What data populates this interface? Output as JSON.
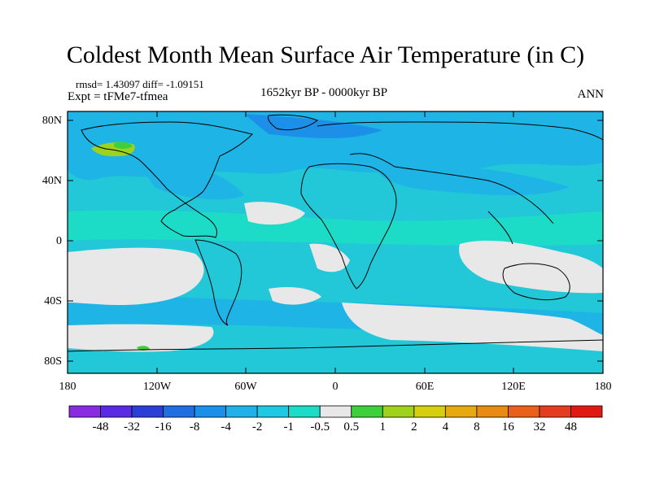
{
  "header": {
    "title": "Coldest Month Mean Surface Air Temperature (in C)",
    "stats": "rmsd= 1.43097 diff= -1.09151",
    "experiment": "Expt = tFMe7-tfmea",
    "period": "1652kyr BP - 0000kyr BP",
    "season": "ANN"
  },
  "axes": {
    "y_ticks": [
      "80N",
      "40N",
      "0",
      "40S",
      "80S"
    ],
    "x_ticks": [
      "180",
      "120W",
      "60W",
      "0",
      "60E",
      "120E",
      "180"
    ]
  },
  "colorbar": {
    "labels": [
      "-48",
      "-32",
      "-16",
      "-8",
      "-4",
      "-2",
      "-1",
      "-0.5",
      "0.5",
      "1",
      "2",
      "4",
      "8",
      "16",
      "32",
      "48"
    ],
    "colors": [
      "#8a2be2",
      "#5a2be2",
      "#2b3fd6",
      "#1f6fe0",
      "#1c90e8",
      "#22b0ea",
      "#1fc8e4",
      "#1ddcc7",
      "#e8e8e8",
      "#3fcf3a",
      "#9fd21c",
      "#d6cf10",
      "#e8a810",
      "#e88a14",
      "#e8601a",
      "#e43c1e",
      "#e01a12"
    ]
  },
  "colors": {
    "background": "#e8e8e8",
    "ocean_main": "#22c8d8",
    "cool": "#1fa8e8",
    "mild": "#1ddcc7",
    "neutral": "#e8e8e8",
    "warm": "#9fd21c"
  }
}
